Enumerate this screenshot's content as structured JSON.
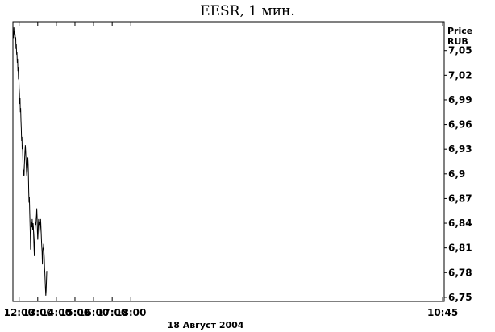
{
  "chart_data": {
    "type": "line",
    "title": "EESR, 1 мин.",
    "ylabel": "Price",
    "yunit": "RUB",
    "xlabel": "18 Август 2004",
    "ylim": [
      6.745,
      7.085
    ],
    "yticks": [
      "7,05",
      "7,02",
      "6,99",
      "6,96",
      "6,93",
      "6,9",
      "6,87",
      "6,84",
      "6,81",
      "6,78",
      "6,75"
    ],
    "ytick_values": [
      7.05,
      7.02,
      6.99,
      6.96,
      6.93,
      6.9,
      6.87,
      6.84,
      6.81,
      6.78,
      6.75
    ],
    "xlim": [
      "11:40",
      "10:50"
    ],
    "xticks": [
      "12:00",
      "13:00",
      "14:00",
      "15:00",
      "16:00",
      "17:00",
      "18:00",
      "10:45"
    ],
    "grid": false,
    "series": [
      {
        "points": [
          [
            "11:42",
            7.065
          ],
          [
            "11:43",
            7.078
          ],
          [
            "11:44",
            7.07
          ],
          [
            "11:45",
            7.074
          ],
          [
            "11:46",
            7.068
          ],
          [
            "11:47",
            7.07
          ],
          [
            "11:48",
            7.062
          ],
          [
            "11:49",
            7.066
          ],
          [
            "11:50",
            7.052
          ],
          [
            "11:51",
            7.058
          ],
          [
            "11:52",
            7.045
          ],
          [
            "11:53",
            7.048
          ],
          [
            "11:54",
            7.035
          ],
          [
            "11:55",
            7.04
          ],
          [
            "11:56",
            7.025
          ],
          [
            "11:57",
            7.03
          ],
          [
            "11:58",
            7.015
          ],
          [
            "11:59",
            7.02
          ],
          [
            "12:00",
            7.005
          ],
          [
            "12:01",
            6.998
          ],
          [
            "12:02",
            6.985
          ],
          [
            "12:03",
            6.992
          ],
          [
            "12:04",
            6.975
          ],
          [
            "12:05",
            6.98
          ],
          [
            "12:06",
            6.965
          ],
          [
            "12:07",
            6.955
          ],
          [
            "12:08",
            6.94
          ],
          [
            "12:09",
            6.945
          ],
          [
            "12:10",
            6.93
          ],
          [
            "12:11",
            6.935
          ],
          [
            "12:12",
            6.92
          ],
          [
            "12:13",
            6.905
          ],
          [
            "12:14",
            6.897
          ],
          [
            "12:15",
            6.905
          ],
          [
            "12:16",
            6.898
          ],
          [
            "12:17",
            6.91
          ],
          [
            "12:18",
            6.92
          ],
          [
            "12:19",
            6.928
          ],
          [
            "12:20",
            6.935
          ],
          [
            "12:21",
            6.928
          ],
          [
            "12:22",
            6.918
          ],
          [
            "12:23",
            6.91
          ],
          [
            "12:24",
            6.902
          ],
          [
            "12:25",
            6.897
          ],
          [
            "12:26",
            6.905
          ],
          [
            "12:27",
            6.915
          ],
          [
            "12:28",
            6.92
          ],
          [
            "12:29",
            6.912
          ],
          [
            "12:30",
            6.9
          ],
          [
            "12:31",
            6.88
          ],
          [
            "12:32",
            6.865
          ],
          [
            "12:33",
            6.872
          ],
          [
            "12:34",
            6.855
          ],
          [
            "12:35",
            6.84
          ],
          [
            "12:36",
            6.825
          ],
          [
            "12:37",
            6.808
          ],
          [
            "12:38",
            6.822
          ],
          [
            "12:39",
            6.835
          ],
          [
            "12:40",
            6.842
          ],
          [
            "12:41",
            6.835
          ],
          [
            "12:42",
            6.845
          ],
          [
            "12:43",
            6.838
          ],
          [
            "12:44",
            6.832
          ],
          [
            "12:45",
            6.84
          ],
          [
            "12:46",
            6.835
          ],
          [
            "12:47",
            6.822
          ],
          [
            "12:48",
            6.81
          ],
          [
            "12:49",
            6.8
          ],
          [
            "12:50",
            6.815
          ],
          [
            "12:51",
            6.828
          ],
          [
            "12:52",
            6.835
          ],
          [
            "12:53",
            6.842
          ],
          [
            "12:54",
            6.838
          ],
          [
            "12:55",
            6.845
          ],
          [
            "12:56",
            6.85
          ],
          [
            "12:57",
            6.858
          ],
          [
            "12:58",
            6.848
          ],
          [
            "12:59",
            6.83
          ],
          [
            "13:00",
            6.82
          ],
          [
            "13:01",
            6.828
          ],
          [
            "13:02",
            6.84
          ],
          [
            "13:03",
            6.845
          ],
          [
            "13:04",
            6.838
          ],
          [
            "13:05",
            6.842
          ],
          [
            "13:06",
            6.835
          ],
          [
            "13:07",
            6.828
          ],
          [
            "13:08",
            6.838
          ],
          [
            "13:09",
            6.845
          ],
          [
            "13:10",
            6.84
          ],
          [
            "13:11",
            6.83
          ],
          [
            "13:12",
            6.82
          ],
          [
            "13:13",
            6.812
          ],
          [
            "13:14",
            6.805
          ],
          [
            "13:15",
            6.79
          ],
          [
            "13:16",
            6.8
          ],
          [
            "13:17",
            6.81
          ],
          [
            "13:18",
            6.808
          ],
          [
            "13:19",
            6.815
          ],
          [
            "13:20",
            6.805
          ],
          [
            "13:21",
            6.798
          ],
          [
            "13:22",
            6.785
          ],
          [
            "13:23",
            6.78
          ],
          [
            "13:24",
            6.77
          ],
          [
            "13:25",
            6.76
          ],
          [
            "13:26",
            6.752
          ],
          [
            "13:27",
            6.758
          ],
          [
            "13:28",
            6.77
          ],
          [
            "13:29",
            6.782
          ]
        ]
      }
    ]
  }
}
